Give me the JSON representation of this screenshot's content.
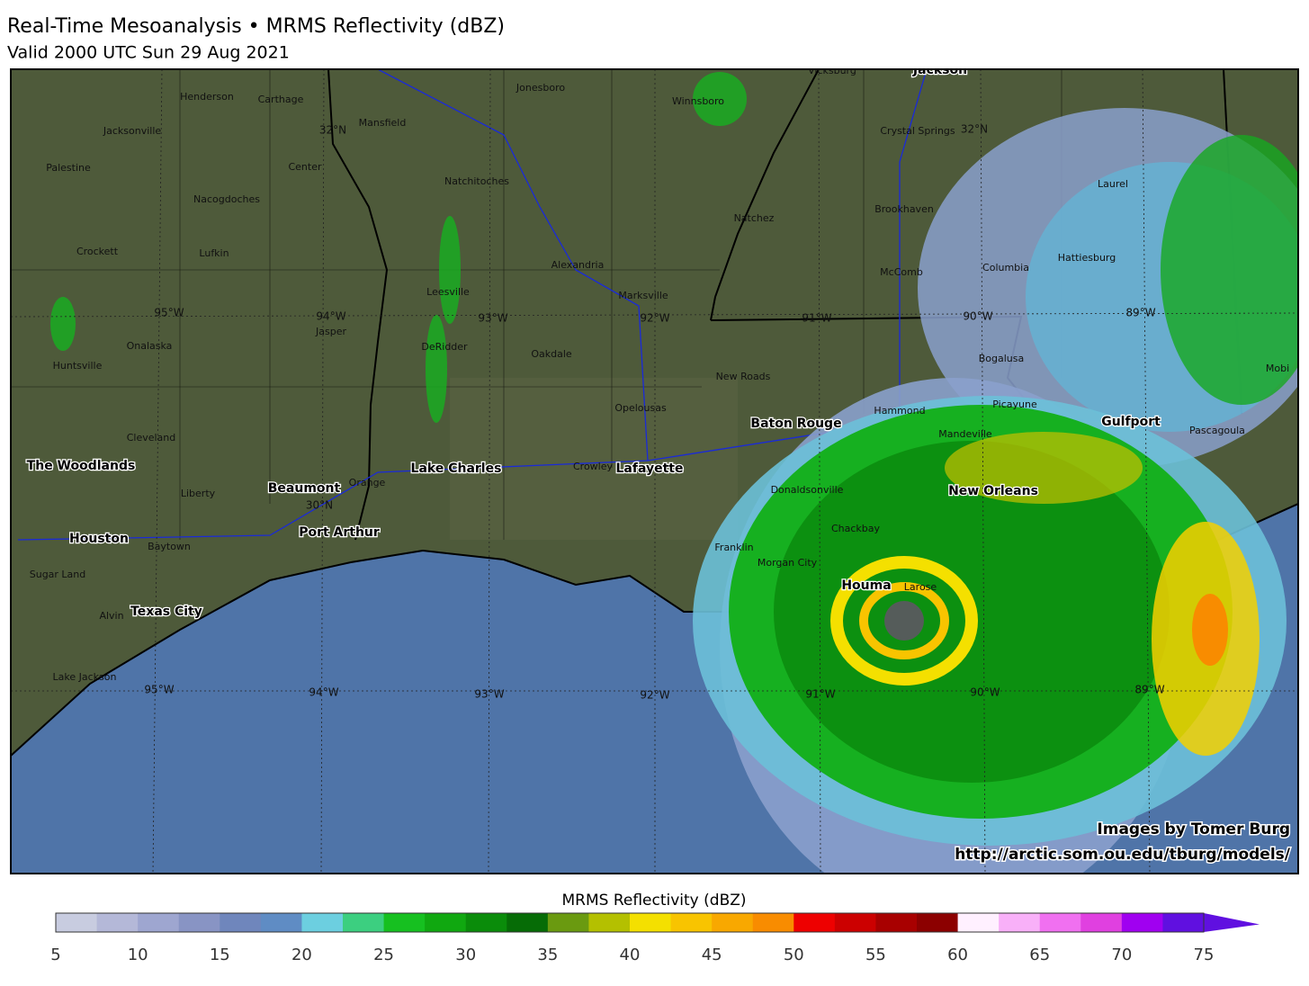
{
  "header": {
    "title": "Real-Time Mesoanalysis • MRMS Reflectivity (dBZ)",
    "subtitle": "Valid 2000 UTC Sun 29 Aug 2021"
  },
  "map": {
    "places": [
      "Henderson",
      "Carthage",
      "Jonesboro",
      "Vicksburg",
      "Jackson",
      "Winnsboro",
      "Jacksonville",
      "Mansfield",
      "Crystal Springs",
      "Palestine",
      "Center",
      "Natchitoches",
      "Laurel",
      "Nacogdoches",
      "Brookhaven",
      "Natchez",
      "Crockett",
      "Lufkin",
      "Alexandria",
      "Hattiesburg",
      "McComb",
      "Columbia",
      "Leesville",
      "Marksville",
      "Jasper",
      "Onalaska",
      "DeRidder",
      "Oakdale",
      "Bogalusa",
      "Mobi",
      "Huntsville",
      "New Roads",
      "Opelousas",
      "Hammond",
      "Picayune",
      "Cleveland",
      "Baton Rouge",
      "Mandeville",
      "Gulfport",
      "Pascagoula",
      "The Woodlands",
      "Lake Charles",
      "Crowley",
      "Lafayette",
      "Liberty",
      "Beaumont",
      "Orange",
      "Donaldsonville",
      "New Orleans",
      "Houston",
      "Port Arthur",
      "Baytown",
      "Chackbay",
      "Franklin",
      "Morgan City",
      "Sugar Land",
      "Houma",
      "Larose",
      "Alvin",
      "Texas City",
      "Lake Jackson"
    ],
    "grid_labels": [
      "32°N",
      "32°N",
      "95°W",
      "94°W",
      "93°W",
      "92°W",
      "91°W",
      "90°W",
      "89°W",
      "30°N",
      "95°W",
      "94°W",
      "93°W",
      "92°W",
      "91°W",
      "90°W",
      "89°W"
    ]
  },
  "credits": [
    "Images by Tomer Burg",
    "http://arctic.som.ou.edu/tburg/models/"
  ],
  "colorbar": {
    "label": "MRMS Reflectivity (dBZ)",
    "range": [
      5,
      75
    ],
    "ticks": [
      5,
      10,
      15,
      20,
      25,
      30,
      35,
      40,
      45,
      50,
      55,
      60,
      65,
      70,
      75
    ],
    "colors": [
      "#c8cce0",
      "#b4b8d8",
      "#9ea6d0",
      "#8894c4",
      "#6f86bc",
      "#5f8cc4",
      "#6ccfe0",
      "#3ccf80",
      "#16c020",
      "#10a810",
      "#0a8c0a",
      "#066c06",
      "#6a9a10",
      "#b4c000",
      "#f4e000",
      "#f8c400",
      "#f8a800",
      "#f88c00",
      "#ee0000",
      "#cc0000",
      "#a80000",
      "#8c0000",
      "#fff0ff",
      "#f8b0f8",
      "#f070f0",
      "#e040e0",
      "#a000f0",
      "#6010e0"
    ]
  }
}
